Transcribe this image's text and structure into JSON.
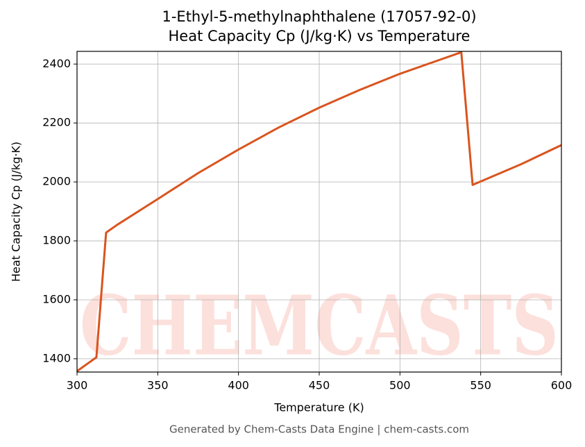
{
  "chart_data": {
    "type": "line",
    "title": "1-Ethyl-5-methylnaphthalene (17057-92-0)",
    "subtitle": "Heat Capacity Cp (J/kg·K) vs Temperature",
    "x_label": "Temperature (K)",
    "y_label": "Heat Capacity Cp (J/kg·K)",
    "footer": "Generated by Chem-Casts Data Engine | chem-casts.com",
    "watermark": "CHEMCASTS",
    "x": [
      300,
      312,
      318,
      325,
      350,
      375,
      400,
      425,
      450,
      475,
      500,
      525,
      538,
      545,
      575,
      600
    ],
    "series": [
      {
        "name": "Cp",
        "color": "#d9541e",
        "values": [
          1358,
          1405,
          1828,
          1855,
          1942,
          2030,
          2110,
          2185,
          2252,
          2312,
          2367,
          2415,
          2440,
          1990,
          2060,
          2125
        ]
      }
    ],
    "xlim": [
      300,
      600
    ],
    "ylim": [
      1355,
      2443
    ],
    "xticks": [
      300,
      350,
      400,
      450,
      500,
      550,
      600
    ],
    "yticks": [
      1400,
      1600,
      1800,
      2000,
      2200,
      2400
    ],
    "grid": true
  }
}
